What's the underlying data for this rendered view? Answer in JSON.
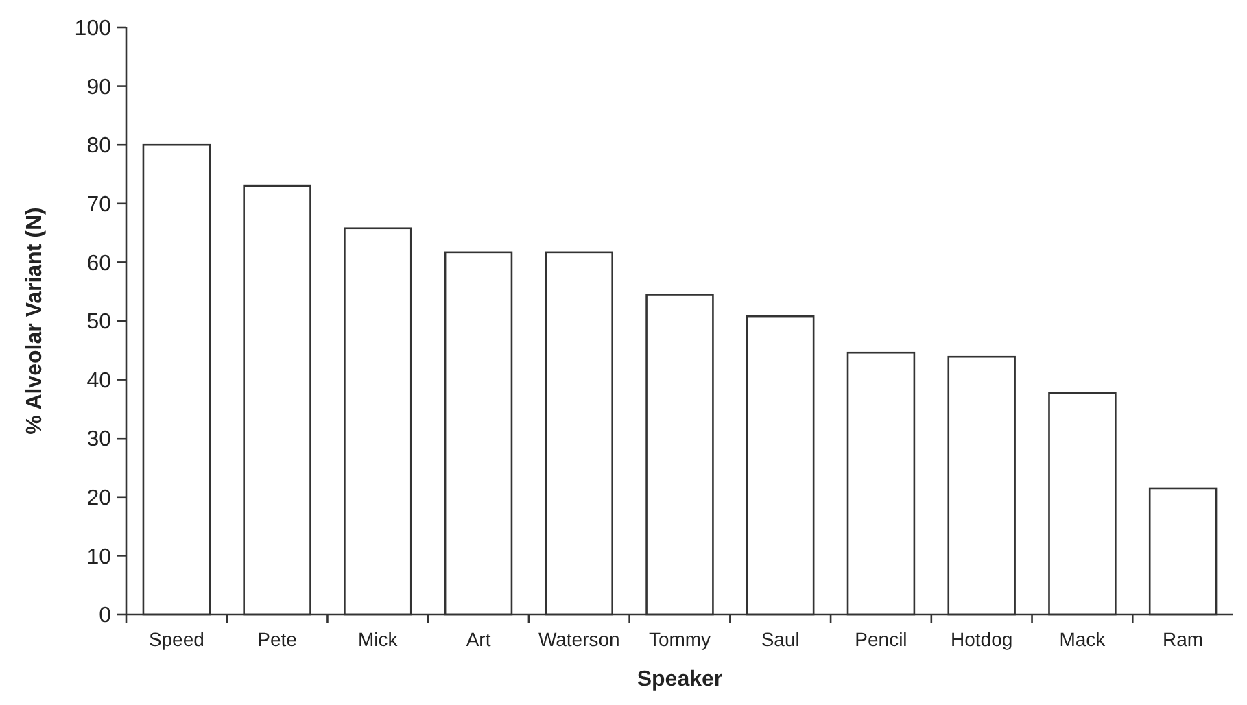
{
  "chart_data": {
    "type": "bar",
    "xlabel": "Speaker",
    "ylabel": "% Alveolar Variant (N)",
    "categories": [
      "Speed",
      "Pete",
      "Mick",
      "Art",
      "Waterson",
      "Tommy",
      "Saul",
      "Pencil",
      "Hotdog",
      "Mack",
      "Ram"
    ],
    "values": [
      80,
      73,
      65.8,
      61.7,
      61.7,
      54.5,
      50.8,
      44.6,
      43.9,
      37.7,
      21.5
    ],
    "color": "#ffffff",
    "ylim": [
      0,
      100
    ],
    "yticks": [
      0,
      10,
      20,
      30,
      40,
      50,
      60,
      70,
      80,
      90,
      100
    ],
    "grid": false
  }
}
